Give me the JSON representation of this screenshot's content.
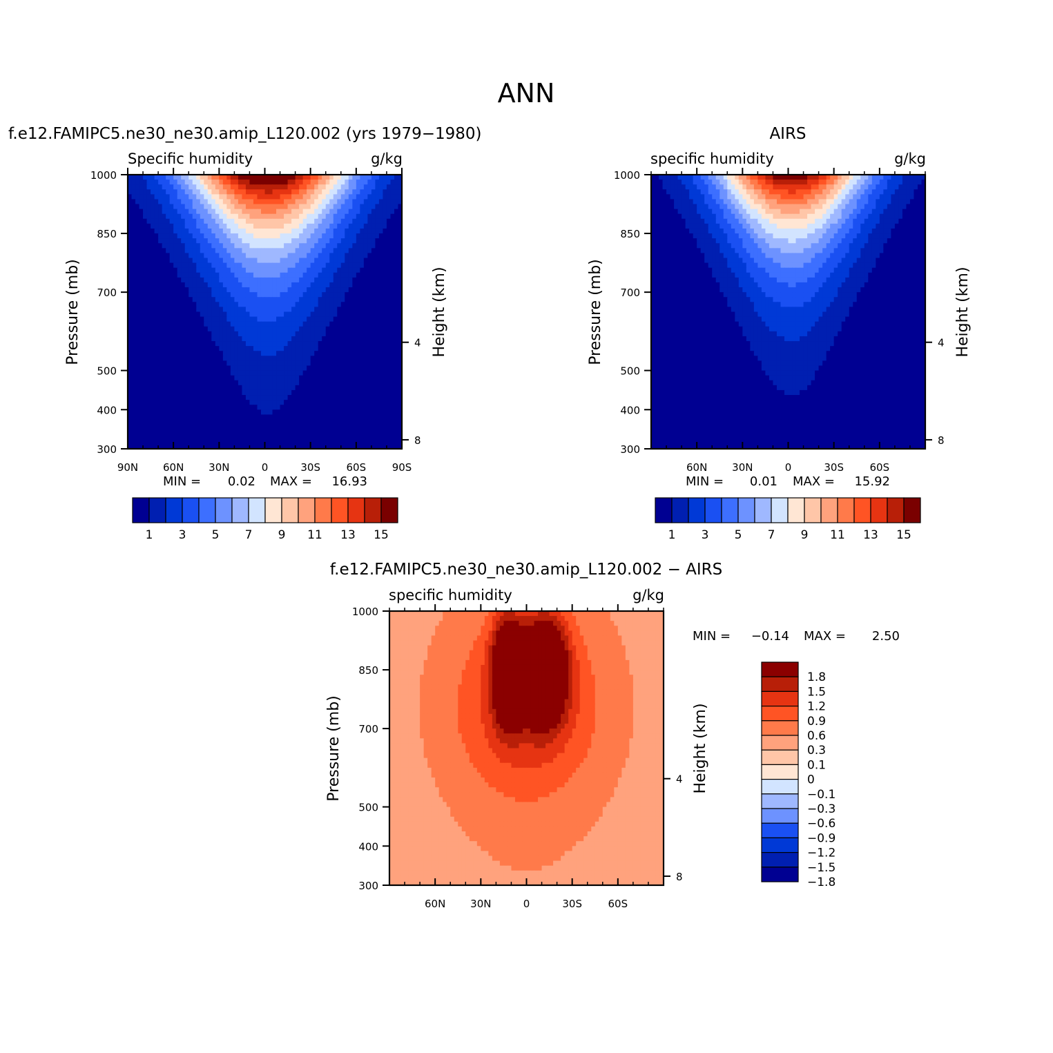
{
  "figure": {
    "title": "ANN",
    "colors": {
      "levels_15": [
        "#000092",
        "#001fb1",
        "#0039d6",
        "#1a50f2",
        "#3d6fff",
        "#6d92ff",
        "#9fb8ff",
        "#d2e4ff",
        "#ffe6d4",
        "#ffc6a8",
        "#ffa27d",
        "#ff7a4a",
        "#ff5424",
        "#e63412",
        "#b81f08",
        "#7a0000"
      ],
      "diff": [
        "#000092",
        "#001fb1",
        "#0039d6",
        "#1a50f2",
        "#6d92ff",
        "#9fb8ff",
        "#d2e4ff",
        "#ffe6d4",
        "#ffc6a8",
        "#ffa27d",
        "#ff7a4a",
        "#ff5424",
        "#e63412",
        "#b81f08",
        "#8b0000"
      ]
    }
  },
  "chart_data": [
    {
      "type": "contour",
      "case_title": "f.e12.FAMIPC5.ne30_ne30.amip_L120.002 (yrs 1979−1980)",
      "left_label": "Specific humidity",
      "right_label": "g/kg",
      "ylabel": "Pressure (mb)",
      "y2label": "Height (km)",
      "xlim": [
        90,
        -90
      ],
      "x_ticks": [
        "90N",
        "60N",
        "30N",
        "0",
        "30S",
        "60S",
        "90S"
      ],
      "x_tick_values": [
        90,
        60,
        30,
        0,
        -30,
        -60,
        -90
      ],
      "y_ticks": [
        "300",
        "400",
        "500",
        "700",
        "850",
        "1000"
      ],
      "y_tick_values": [
        300,
        400,
        500,
        700,
        850,
        1000
      ],
      "y2_ticks": [
        "8",
        "4"
      ],
      "y2_tick_values": [
        8,
        4
      ],
      "min_label": "MIN =",
      "min_value": "0.02",
      "max_label": "MAX =",
      "max_value": "16.93",
      "colorbar": {
        "orientation": "horizontal",
        "labels": [
          "1",
          "3",
          "5",
          "7",
          "9",
          "11",
          "13",
          "15"
        ],
        "levels": [
          1,
          2,
          3,
          4,
          5,
          6,
          7,
          8,
          9,
          10,
          11,
          12,
          13,
          14,
          15
        ]
      },
      "contour_field": {
        "peak_latitude": -2,
        "peak_value": 16.93,
        "surface_width_deg": 55,
        "vertical_decay": 3.3
      }
    },
    {
      "type": "contour",
      "case_title": "AIRS",
      "left_label": "specific humidity",
      "right_label": "g/kg",
      "ylabel": "Pressure (mb)",
      "y2label": "Height (km)",
      "xlim": [
        90,
        -90
      ],
      "x_ticks": [
        "60N",
        "30N",
        "0",
        "30S",
        "60S"
      ],
      "x_tick_values": [
        60,
        30,
        0,
        -30,
        -60
      ],
      "y_ticks": [
        "300",
        "400",
        "500",
        "700",
        "850",
        "1000"
      ],
      "y_tick_values": [
        300,
        400,
        500,
        700,
        850,
        1000
      ],
      "y2_ticks": [
        "8",
        "4"
      ],
      "y2_tick_values": [
        8,
        4
      ],
      "min_label": "MIN =",
      "min_value": "0.01",
      "max_label": "MAX =",
      "max_value": "15.92",
      "colorbar": {
        "orientation": "horizontal",
        "labels": [
          "1",
          "3",
          "5",
          "7",
          "9",
          "11",
          "13",
          "15"
        ],
        "levels": [
          1,
          2,
          3,
          4,
          5,
          6,
          7,
          8,
          9,
          10,
          11,
          12,
          13,
          14,
          15
        ]
      },
      "contour_field": {
        "peak_latitude": -2,
        "peak_value": 15.92,
        "surface_width_deg": 50,
        "vertical_decay": 3.5
      }
    },
    {
      "type": "contour",
      "case_title": "f.e12.FAMIPC5.ne30_ne30.amip_L120.002 − AIRS",
      "left_label": "specific humidity",
      "right_label": "g/kg",
      "ylabel": "Pressure (mb)",
      "y2label": "Height (km)",
      "xlim": [
        90,
        -90
      ],
      "x_ticks": [
        "60N",
        "30N",
        "0",
        "30S",
        "60S"
      ],
      "x_tick_values": [
        60,
        30,
        0,
        -30,
        -60
      ],
      "y_ticks": [
        "300",
        "400",
        "500",
        "700",
        "850",
        "1000"
      ],
      "y_tick_values": [
        300,
        400,
        500,
        700,
        850,
        1000
      ],
      "y2_ticks": [
        "8",
        "4"
      ],
      "y2_tick_values": [
        8,
        4
      ],
      "min_label": "MIN =",
      "min_value": "−0.14",
      "max_label": "MAX =",
      "max_value": "2.50",
      "colorbar": {
        "orientation": "vertical",
        "labels": [
          "1.8",
          "1.5",
          "1.2",
          "0.9",
          "0.6",
          "0.3",
          "0.1",
          "0",
          "−0.1",
          "−0.3",
          "−0.6",
          "−0.9",
          "−1.2",
          "−1.5",
          "−1.8"
        ],
        "levels": [
          -1.8,
          -1.5,
          -1.2,
          -0.9,
          -0.6,
          -0.3,
          -0.1,
          0,
          0.1,
          0.3,
          0.6,
          0.9,
          1.2,
          1.5,
          1.8
        ]
      },
      "contour_field": {
        "peak_latitude_1": 12,
        "peak_latitude_2": -12,
        "peak_pressure": 850,
        "peak_value": 2.5
      }
    }
  ]
}
